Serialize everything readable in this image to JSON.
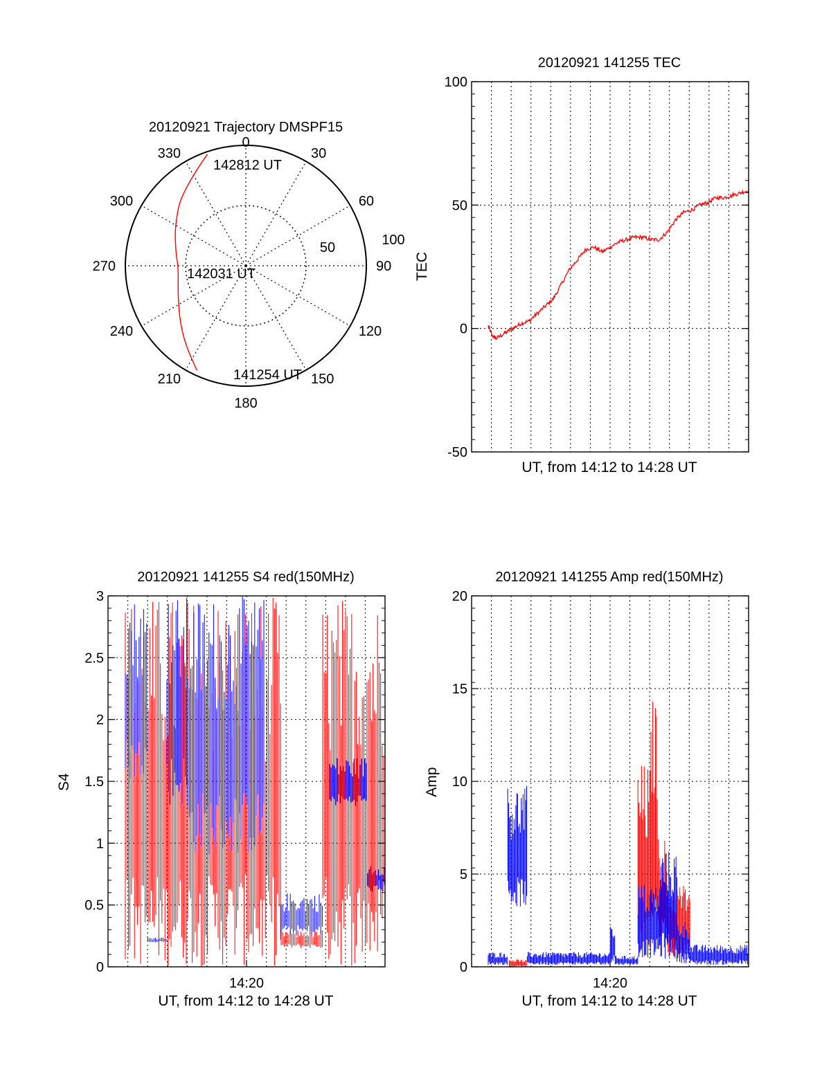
{
  "colors": {
    "red": "#ff0000",
    "blue": "#0000ff",
    "axis": "#000000",
    "grid": "#000000"
  },
  "chart_data": [
    {
      "type": "polar",
      "title": "20120921 Trajectory DMSPF15",
      "angle_ticks": [
        "0",
        "30",
        "60",
        "90",
        "120",
        "150",
        "180",
        "210",
        "240",
        "270",
        "300",
        "330"
      ],
      "radial_ticks": [
        "50",
        "100"
      ],
      "radial_max": 100,
      "grid": true,
      "annotations": [
        "142812 UT",
        "142031 UT",
        "141254 UT"
      ],
      "series": [
        {
          "color": "red",
          "points": [
            {
              "az": 341,
              "zenith": 98
            },
            {
              "az": 320,
              "zenith": 82
            },
            {
              "az": 300,
              "zenith": 68
            },
            {
              "az": 280,
              "zenith": 59
            },
            {
              "az": 268,
              "zenith": 56
            },
            {
              "az": 250,
              "zenith": 60
            },
            {
              "az": 232,
              "zenith": 70
            },
            {
              "az": 218,
              "zenith": 82
            },
            {
              "az": 205,
              "zenith": 96
            }
          ]
        }
      ]
    },
    {
      "type": "line",
      "title": "20120921 141255 TEC",
      "ylabel": "TEC",
      "xlabel": "UT, from 14:12 to 14:28 UT",
      "xlim": [
        0,
        16
      ],
      "ylim": [
        -50,
        100
      ],
      "yticks": [
        "-50",
        "0",
        "50",
        "100"
      ],
      "xticks": [],
      "grid": true,
      "series": [
        {
          "color": "red",
          "x": [
            0.0,
            0.25,
            0.5,
            1.0,
            1.5,
            2.0,
            2.5,
            3.0,
            3.5,
            4.0,
            4.5,
            5.0,
            5.5,
            6.0,
            6.5,
            7.0,
            7.5,
            8.0,
            8.5,
            9.0,
            9.5,
            10.0,
            10.5,
            11.0,
            11.5,
            12.0,
            12.5,
            13.0,
            13.5,
            14.0,
            14.5,
            15.0,
            15.5,
            16.0
          ],
          "y": [
            1,
            -3,
            -4,
            -2,
            0,
            2,
            3,
            6,
            9,
            12,
            18,
            24,
            28,
            32,
            33,
            31,
            33,
            35,
            36,
            37,
            37,
            36,
            36,
            39,
            44,
            47,
            48,
            50,
            51,
            53,
            53,
            54,
            55,
            56
          ]
        }
      ]
    },
    {
      "type": "line",
      "title": "20120921 141255 S4 red(150MHz)",
      "ylabel": "S4",
      "xlabel": "UT, from 14:12 to 14:28 UT",
      "xlim": [
        0,
        16
      ],
      "ylim": [
        0,
        3
      ],
      "yticks": [
        "0",
        "0.5",
        "1",
        "1.5",
        "2",
        "2.5",
        "3"
      ],
      "xticks": [
        "14:20"
      ],
      "grid": true,
      "series": [
        {
          "color": "red",
          "style": "dense",
          "segments": [
            {
              "x0": 1.0,
              "x1": 4.6,
              "lo": 0,
              "hi": 3
            },
            {
              "x0": 4.6,
              "x1": 9.0,
              "lo": 0,
              "hi": 3
            },
            {
              "x0": 9.0,
              "x1": 10.0,
              "lo": 0,
              "hi": 3
            },
            {
              "x0": 10.0,
              "x1": 12.4,
              "lo": 0.15,
              "hi": 0.3
            },
            {
              "x0": 12.4,
              "x1": 16.0,
              "lo": 0,
              "hi": 3
            }
          ]
        },
        {
          "color": "blue",
          "style": "dense",
          "segments": [
            {
              "x0": 1.0,
              "x1": 2.3,
              "lo": 1.5,
              "hi": 3
            },
            {
              "x0": 2.3,
              "x1": 3.4,
              "lo": 0.2,
              "hi": 0.24
            },
            {
              "x0": 3.4,
              "x1": 4.6,
              "lo": 1.3,
              "hi": 3
            },
            {
              "x0": 4.6,
              "x1": 9.0,
              "lo": 0.9,
              "hi": 3
            },
            {
              "x0": 10.0,
              "x1": 12.4,
              "lo": 0.25,
              "hi": 0.6
            },
            {
              "x0": 12.8,
              "x1": 15.0,
              "lo": 1.3,
              "hi": 1.7
            },
            {
              "x0": 15.0,
              "x1": 16.0,
              "lo": 0.6,
              "hi": 0.85
            }
          ]
        }
      ]
    },
    {
      "type": "line",
      "title": "20120921 141255 Amp red(150MHz)",
      "ylabel": "Amp",
      "xlabel": "UT, from 14:12 to 14:28 UT",
      "xlim": [
        0,
        16
      ],
      "ylim": [
        0,
        20
      ],
      "yticks": [
        "0",
        "5",
        "10",
        "15",
        "20"
      ],
      "xticks": [
        "14:20"
      ],
      "grid": true,
      "series": [
        {
          "color": "red",
          "style": "dense",
          "segments": [
            {
              "x0": 1.3,
              "x1": 2.4,
              "lo": 0,
              "hi": 0.4
            },
            {
              "x0": 9.2,
              "x1": 10.0,
              "lo": 0.3,
              "hi": 11
            },
            {
              "x0": 10.0,
              "x1": 10.4,
              "lo": 2,
              "hi": 14.5
            },
            {
              "x0": 10.4,
              "x1": 11.0,
              "lo": 1.5,
              "hi": 7
            },
            {
              "x0": 11.0,
              "x1": 12.4,
              "lo": 0.5,
              "hi": 4.5
            }
          ]
        },
        {
          "color": "blue",
          "style": "dense",
          "segments": [
            {
              "x0": 0.0,
              "x1": 1.2,
              "lo": 0.1,
              "hi": 0.8
            },
            {
              "x0": 1.2,
              "x1": 2.4,
              "lo": 3.2,
              "hi": 9.8
            },
            {
              "x0": 2.4,
              "x1": 7.5,
              "lo": 0.1,
              "hi": 0.8
            },
            {
              "x0": 7.5,
              "x1": 7.8,
              "lo": 0.2,
              "hi": 2.4
            },
            {
              "x0": 7.8,
              "x1": 9.2,
              "lo": 0.1,
              "hi": 0.6
            },
            {
              "x0": 9.2,
              "x1": 10.6,
              "lo": 0.5,
              "hi": 4.5
            },
            {
              "x0": 10.6,
              "x1": 11.6,
              "lo": 0.4,
              "hi": 6.3
            },
            {
              "x0": 11.6,
              "x1": 12.4,
              "lo": 0.2,
              "hi": 2.5
            },
            {
              "x0": 12.4,
              "x1": 16.0,
              "lo": 0.1,
              "hi": 1.2
            }
          ]
        }
      ]
    }
  ]
}
